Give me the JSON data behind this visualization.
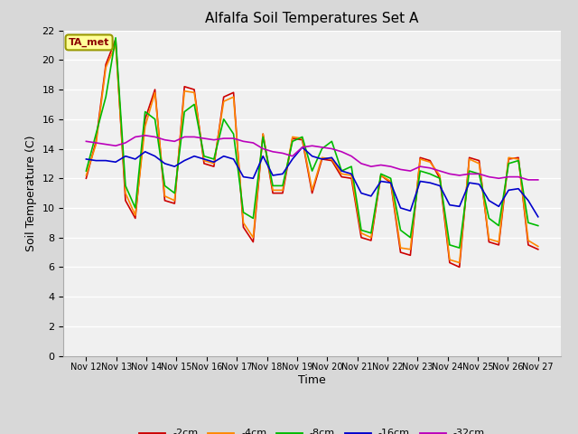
{
  "title": "Alfalfa Soil Temperatures Set A",
  "xlabel": "Time",
  "ylabel": "Soil Temperature (C)",
  "ylim": [
    0,
    22
  ],
  "yticks": [
    0,
    2,
    4,
    6,
    8,
    10,
    12,
    14,
    16,
    18,
    20,
    22
  ],
  "x_labels": [
    "Nov 12",
    "Nov 13",
    "Nov 14",
    "Nov 15",
    "Nov 16",
    "Nov 17",
    "Nov 18",
    "Nov 19",
    "Nov 20",
    "Nov 21",
    "Nov 22",
    "Nov 23",
    "Nov 24",
    "Nov 25",
    "Nov 26",
    "Nov 27"
  ],
  "colors": {
    "-2cm": "#cc0000",
    "-4cm": "#ff8800",
    "-8cm": "#00bb00",
    "-16cm": "#0000cc",
    "-32cm": "#bb00bb"
  },
  "legend_labels": [
    "-2cm",
    "-4cm",
    "-8cm",
    "-16cm",
    "-32cm"
  ],
  "ta_met_label": "TA_met",
  "fig_bg_color": "#d8d8d8",
  "plot_bg_color": "#f0f0f0",
  "data": {
    "-2cm": [
      12.0,
      14.5,
      19.7,
      21.4,
      10.5,
      9.3,
      16.0,
      18.0,
      10.5,
      10.3,
      18.2,
      18.0,
      13.0,
      12.8,
      17.5,
      17.8,
      8.7,
      7.7,
      15.0,
      11.0,
      11.0,
      14.7,
      14.6,
      11.0,
      13.3,
      13.2,
      12.1,
      12.0,
      8.0,
      7.8,
      12.2,
      11.7,
      7.0,
      6.8,
      13.4,
      13.2,
      12.0,
      6.3,
      6.0,
      13.4,
      13.2,
      7.7,
      7.5,
      13.3,
      13.4,
      7.5,
      7.2
    ],
    "-4cm": [
      12.2,
      14.3,
      19.5,
      21.0,
      11.0,
      9.5,
      15.5,
      17.8,
      10.8,
      10.5,
      17.9,
      17.8,
      13.2,
      13.0,
      17.2,
      17.5,
      9.0,
      8.0,
      15.0,
      11.2,
      11.2,
      14.8,
      14.7,
      11.2,
      13.4,
      13.3,
      12.3,
      12.2,
      8.3,
      8.0,
      12.2,
      11.8,
      7.3,
      7.2,
      13.3,
      13.1,
      12.2,
      6.5,
      6.3,
      13.3,
      13.0,
      7.9,
      7.7,
      13.4,
      13.3,
      7.8,
      7.4
    ],
    "-8cm": [
      12.5,
      15.0,
      17.5,
      21.5,
      11.5,
      10.0,
      16.5,
      16.0,
      11.5,
      11.0,
      16.5,
      17.0,
      13.5,
      13.3,
      16.0,
      15.0,
      9.7,
      9.3,
      14.8,
      11.5,
      11.5,
      14.5,
      14.8,
      12.5,
      14.0,
      14.5,
      12.5,
      12.8,
      8.5,
      8.3,
      12.3,
      12.0,
      8.5,
      8.0,
      12.5,
      12.3,
      12.0,
      7.5,
      7.3,
      12.5,
      12.3,
      9.3,
      8.8,
      13.0,
      13.2,
      9.0,
      8.8
    ],
    "-16cm": [
      13.3,
      13.2,
      13.2,
      13.1,
      13.5,
      13.3,
      13.8,
      13.5,
      13.0,
      12.8,
      13.2,
      13.5,
      13.3,
      13.1,
      13.5,
      13.3,
      12.1,
      12.0,
      13.5,
      12.2,
      12.3,
      13.3,
      14.1,
      13.5,
      13.3,
      13.4,
      12.5,
      12.3,
      11.0,
      10.8,
      11.8,
      11.7,
      10.0,
      9.8,
      11.8,
      11.7,
      11.5,
      10.2,
      10.1,
      11.7,
      11.6,
      10.5,
      10.1,
      11.2,
      11.3,
      10.5,
      9.4
    ],
    "-32cm": [
      14.5,
      14.4,
      14.3,
      14.2,
      14.4,
      14.8,
      14.9,
      14.8,
      14.6,
      14.5,
      14.8,
      14.8,
      14.7,
      14.6,
      14.7,
      14.7,
      14.5,
      14.4,
      14.0,
      13.8,
      13.7,
      13.5,
      14.1,
      14.2,
      14.1,
      14.0,
      13.8,
      13.5,
      13.0,
      12.8,
      12.9,
      12.8,
      12.6,
      12.5,
      12.8,
      12.7,
      12.5,
      12.3,
      12.2,
      12.3,
      12.3,
      12.1,
      12.0,
      12.1,
      12.1,
      11.9,
      11.9
    ]
  }
}
